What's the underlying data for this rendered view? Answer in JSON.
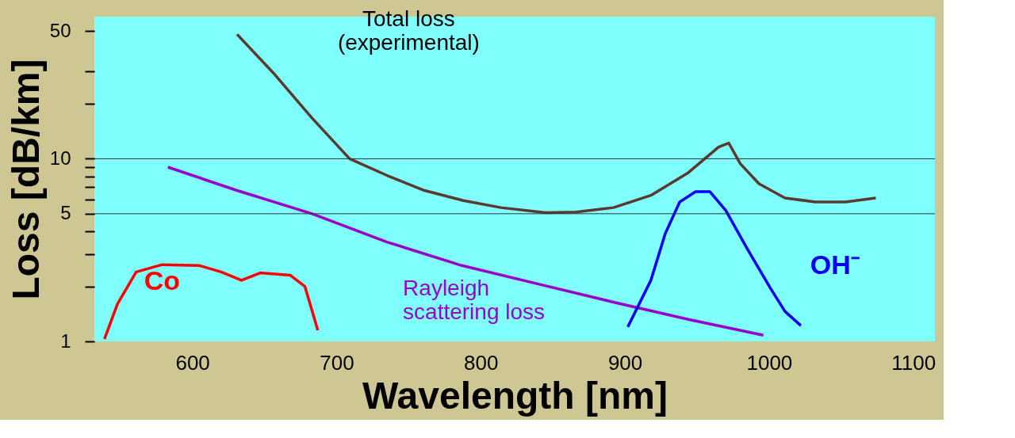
{
  "chart_data": {
    "type": "line",
    "xlabel": "Wavelength [nm]",
    "ylabel": "Loss [dB/km]",
    "log": "y",
    "xlim": [
      532,
      1115
    ],
    "ylim": [
      1,
      60
    ],
    "xticks": [
      600,
      700,
      800,
      900,
      1000,
      1100
    ],
    "yticks": [
      1,
      {
        "value": 2,
        "label": null
      },
      {
        "value": 3,
        "label": null
      },
      {
        "value": 4,
        "label": null
      },
      5,
      {
        "value": 6,
        "label": null
      },
      {
        "value": 7,
        "label": null
      },
      {
        "value": 8,
        "label": null
      },
      {
        "value": 9,
        "label": null
      },
      10,
      {
        "value": 20,
        "label": null
      },
      {
        "value": 30,
        "label": null
      },
      50
    ],
    "grid": false,
    "marker": "none",
    "line_style": "solid",
    "ref_lines": [
      {
        "axis": "y",
        "value": 5,
        "color": "#333333"
      },
      {
        "axis": "y",
        "value": 10,
        "color": "#333333"
      }
    ],
    "series": [
      {
        "name": "Total loss\n(experimental)",
        "color": "#5a3a2e",
        "x": [
          631,
          657,
          683,
          709,
          735,
          761,
          788,
          814,
          845,
          866,
          892,
          918,
          944,
          965,
          972,
          980,
          993,
          1011,
          1032,
          1053,
          1074
        ],
        "values": [
          48,
          29,
          16.7,
          10,
          8.1,
          6.7,
          5.9,
          5.4,
          5.07,
          5.1,
          5.4,
          6.3,
          8.4,
          11.6,
          12.2,
          9.4,
          7.3,
          6.1,
          5.8,
          5.8,
          6.1
        ]
      },
      {
        "name": "Rayleigh\nscattering loss",
        "color": "#9900cc",
        "x": [
          583,
          631,
          683,
          735,
          787,
          840,
          892,
          944,
          996
        ],
        "values": [
          9.0,
          6.7,
          5.0,
          3.5,
          2.6,
          2.06,
          1.64,
          1.32,
          1.08
        ]
      },
      {
        "name": "Co",
        "color": "#ff0000",
        "x": [
          539,
          548,
          561,
          579,
          605,
          620,
          634,
          647,
          668,
          678,
          687
        ],
        "values": [
          1.03,
          1.6,
          2.4,
          2.63,
          2.6,
          2.4,
          2.16,
          2.37,
          2.3,
          2.0,
          1.15
        ]
      },
      {
        "name": "OH⁻",
        "color": "#0000ee",
        "x": [
          902,
          918,
          928,
          938,
          949,
          959,
          970,
          985,
          1001,
          1011,
          1022
        ],
        "values": [
          1.2,
          2.16,
          3.9,
          5.8,
          6.6,
          6.6,
          5.2,
          3.2,
          1.95,
          1.46,
          1.22
        ]
      }
    ]
  }
}
